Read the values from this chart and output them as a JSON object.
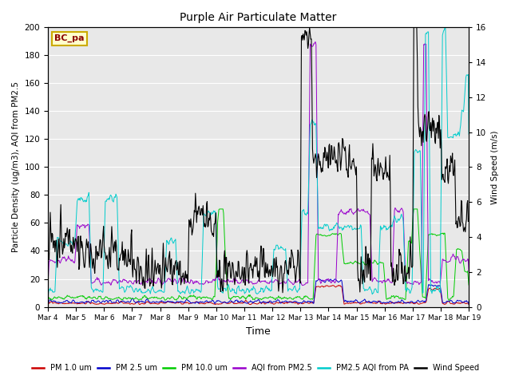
{
  "title": "Purple Air Particulate Matter",
  "xlabel": "Time",
  "ylabel_left": "Particle Density (ug/m3), AQI from PM2.5",
  "ylabel_right": "Wind Speed (m/s)",
  "ylim_left": [
    0,
    200
  ],
  "ylim_right": [
    0,
    16
  ],
  "station_label": "BC_pa",
  "x_tick_labels": [
    "Mar 4",
    "Mar 5",
    "Mar 6",
    "Mar 7",
    "Mar 8",
    "Mar 9",
    "Mar 10",
    "Mar 11",
    "Mar 12",
    "Mar 13",
    "Mar 14",
    "Mar 15",
    "Mar 16",
    "Mar 17",
    "Mar 18",
    "Mar 19"
  ],
  "legend_entries": [
    {
      "label": "PM 1.0 um",
      "color": "#cc0000"
    },
    {
      "label": "PM 2.5 um",
      "color": "#0000cc"
    },
    {
      "label": "PM 10.0 um",
      "color": "#00cc00"
    },
    {
      "label": "AQI from PM2.5",
      "color": "#9900cc"
    },
    {
      "label": "PM2.5 AQI from PA",
      "color": "#00cccc"
    },
    {
      "label": "Wind Speed",
      "color": "#000000"
    }
  ],
  "bg_color": "#e8e8e8",
  "fig_color": "#ffffff",
  "yticks_left": [
    0,
    20,
    40,
    60,
    80,
    100,
    120,
    140,
    160,
    180,
    200
  ],
  "yticks_right": [
    0,
    2,
    4,
    6,
    8,
    10,
    12,
    14,
    16
  ]
}
